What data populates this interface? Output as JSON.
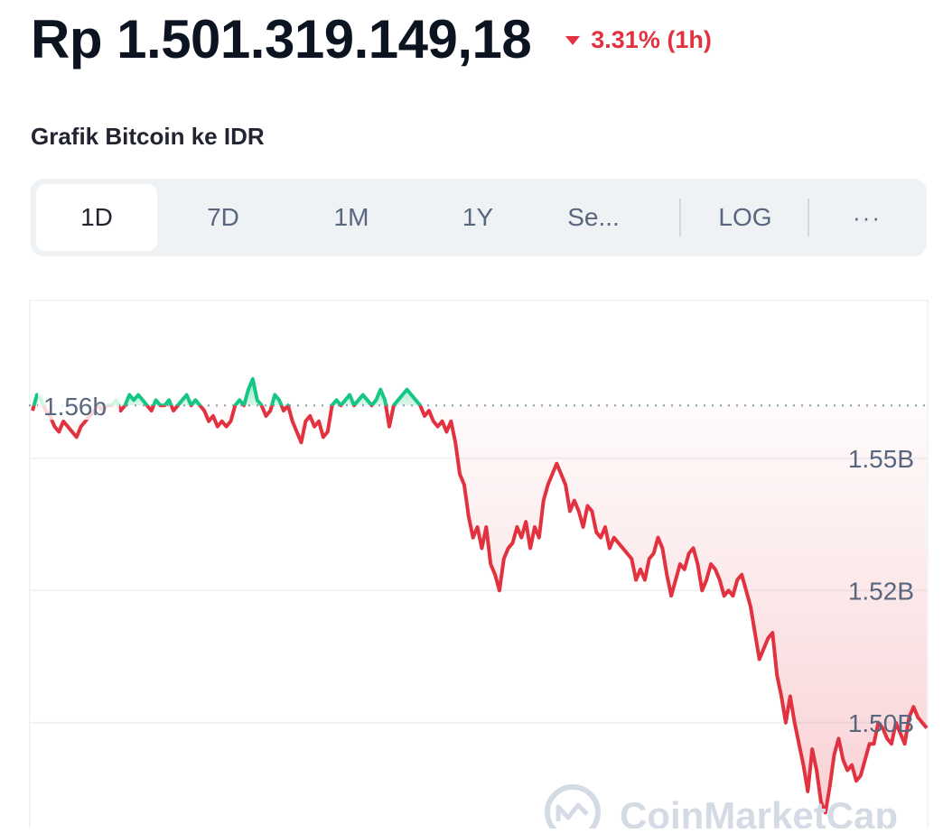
{
  "header": {
    "price": "Rp 1.501.319.149,18",
    "change_text": "3.31% (1h)",
    "change_icon": "triangle-down-icon",
    "change_color": "#e2323f"
  },
  "chart_title": "Grafik Bitcoin ke IDR",
  "toolbar": {
    "buttons": [
      "1D",
      "7D",
      "1M",
      "1Y",
      "Se..."
    ],
    "active": "1D",
    "log_label": "LOG",
    "more_icon": "more-horizontal-icon",
    "more_label": "···"
  },
  "watermark": "CoinMarketCap",
  "colors": {
    "up": "#16c784",
    "down": "#e2323f",
    "grid": "#eff2f5",
    "axis_text": "#58667e"
  },
  "chart_data": {
    "type": "area",
    "reference_label": "1.56b",
    "reference_value": 1.56,
    "y_tick_labels": [
      "1.55B",
      "1.52B",
      "1.50B"
    ],
    "y_tick_values": [
      1.55,
      1.525,
      1.5
    ],
    "ylim": [
      1.48,
      1.58
    ],
    "series": [
      {
        "values": [
          1.559,
          1.562,
          1.561,
          1.559,
          1.558,
          1.556,
          1.555,
          1.557,
          1.556,
          1.555,
          1.554,
          1.556,
          1.557,
          1.558,
          1.559,
          1.56,
          1.559,
          1.56,
          1.56,
          1.561,
          1.559,
          1.56,
          1.562,
          1.561,
          1.562,
          1.561,
          1.56,
          1.559,
          1.561,
          1.56,
          1.56,
          1.561,
          1.559,
          1.56,
          1.561,
          1.562,
          1.56,
          1.561,
          1.56,
          1.559,
          1.557,
          1.558,
          1.556,
          1.557,
          1.556,
          1.557,
          1.56,
          1.561,
          1.56,
          1.563,
          1.565,
          1.561,
          1.56,
          1.558,
          1.559,
          1.562,
          1.561,
          1.559,
          1.56,
          1.557,
          1.555,
          1.553,
          1.557,
          1.558,
          1.556,
          1.557,
          1.554,
          1.555,
          1.56,
          1.561,
          1.56,
          1.561,
          1.562,
          1.56,
          1.561,
          1.562,
          1.561,
          1.56,
          1.561,
          1.563,
          1.561,
          1.556,
          1.56,
          1.561,
          1.562,
          1.563,
          1.562,
          1.561,
          1.56,
          1.558,
          1.559,
          1.557,
          1.556,
          1.557,
          1.555,
          1.557,
          1.553,
          1.547,
          1.545,
          1.539,
          1.535,
          1.537,
          1.533,
          1.537,
          1.53,
          1.528,
          1.525,
          1.531,
          1.533,
          1.534,
          1.537,
          1.535,
          1.538,
          1.533,
          1.537,
          1.535,
          1.542,
          1.545,
          1.547,
          1.549,
          1.547,
          1.545,
          1.54,
          1.542,
          1.54,
          1.537,
          1.541,
          1.54,
          1.536,
          1.535,
          1.537,
          1.533,
          1.535,
          1.534,
          1.533,
          1.532,
          1.531,
          1.527,
          1.529,
          1.527,
          1.531,
          1.532,
          1.535,
          1.533,
          1.528,
          1.524,
          1.527,
          1.53,
          1.529,
          1.532,
          1.533,
          1.53,
          1.525,
          1.527,
          1.53,
          1.529,
          1.527,
          1.524,
          1.525,
          1.524,
          1.527,
          1.528,
          1.525,
          1.522,
          1.517,
          1.512,
          1.514,
          1.516,
          1.517,
          1.509,
          1.505,
          1.5,
          1.505,
          1.5,
          1.496,
          1.492,
          1.487,
          1.495,
          1.491,
          1.485,
          1.483,
          1.488,
          1.494,
          1.497,
          1.493,
          1.491,
          1.492,
          1.489,
          1.49,
          1.493,
          1.496,
          1.496,
          1.5,
          1.499,
          1.497,
          1.496,
          1.5,
          1.498,
          1.496,
          1.501,
          1.503,
          1.501,
          1.5,
          1.499
        ]
      }
    ],
    "grid": true,
    "legend": "none"
  }
}
